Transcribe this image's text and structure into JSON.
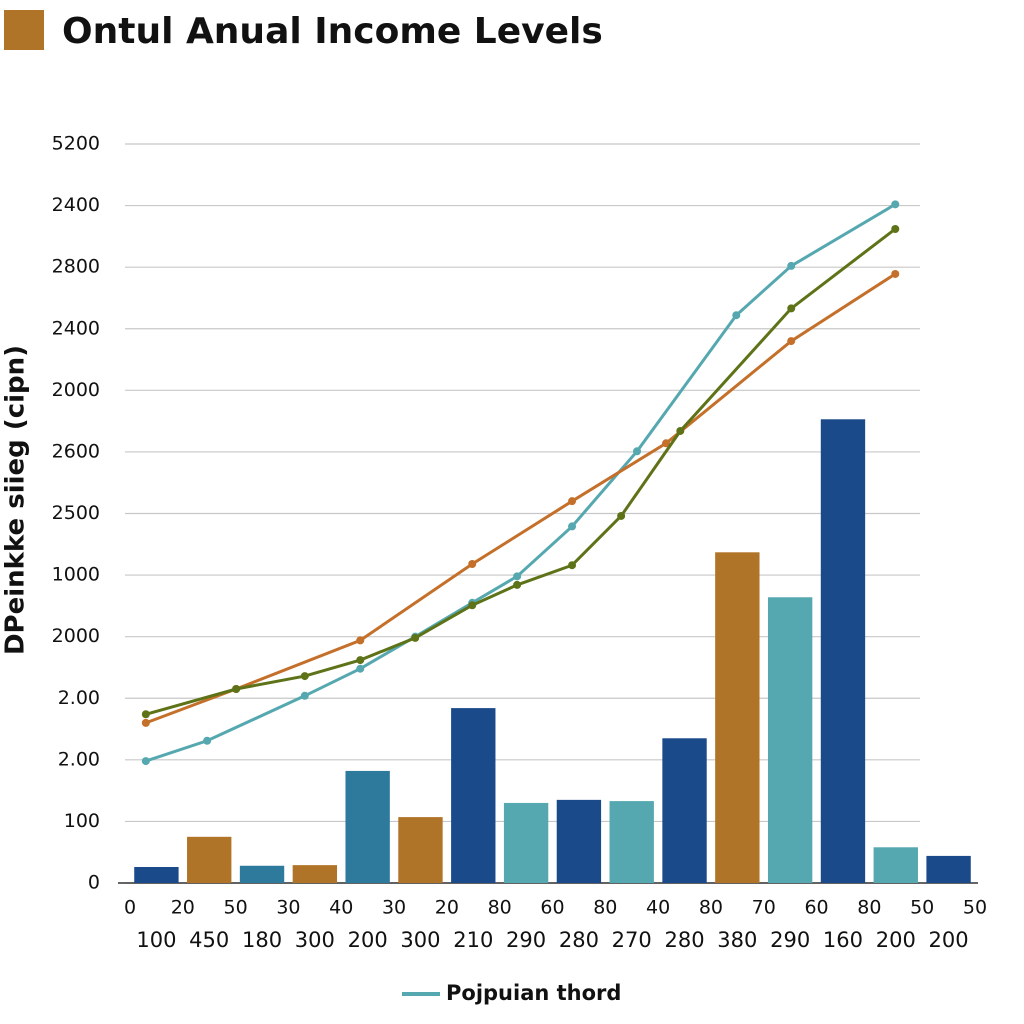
{
  "chart_data": {
    "type": "combo",
    "title": "Ontul Anual Income Levels",
    "title_icon_color": "#b07428",
    "ylabel": "DPeinkke siieg (cipn)",
    "categories": [
      "100",
      "450",
      "180",
      "300",
      "200",
      "300",
      "210",
      "290",
      "280",
      "270",
      "280",
      "380",
      "290",
      "160",
      "200",
      "200"
    ],
    "x_edge_labels": [
      "0",
      "20",
      "50",
      "30",
      "40",
      "30",
      "20",
      "80",
      "60",
      "80",
      "40",
      "80",
      "70",
      "60",
      "80",
      "50",
      "50"
    ],
    "xlim": [
      0,
      16
    ],
    "ylim": [
      0,
      12
    ],
    "yticks": [
      {
        "value": 0,
        "label": "0"
      },
      {
        "value": 1,
        "label": "100"
      },
      {
        "value": 2,
        "label": "2.00"
      },
      {
        "value": 3,
        "label": "2.00"
      },
      {
        "value": 4,
        "label": "2000"
      },
      {
        "value": 5,
        "label": "1000"
      },
      {
        "value": 6,
        "label": "2500"
      },
      {
        "value": 7,
        "label": "2600"
      },
      {
        "value": 8,
        "label": "2000"
      },
      {
        "value": 9,
        "label": "2400"
      },
      {
        "value": 10,
        "label": "2800"
      },
      {
        "value": 11,
        "label": "2400"
      },
      {
        "value": 12,
        "label": "5200"
      }
    ],
    "grid": true,
    "bars": {
      "values": [
        0.26,
        0.75,
        0.28,
        0.29,
        1.82,
        1.07,
        2.84,
        1.3,
        1.35,
        1.33,
        2.35,
        5.37,
        4.64,
        7.53,
        0.58,
        0.44
      ],
      "colors": [
        "#1a4a8a",
        "#b07428",
        "#2e7a9c",
        "#b07428",
        "#2e7a9c",
        "#b07428",
        "#1a4a8a",
        "#55a8b0",
        "#1a4a8a",
        "#55a8b0",
        "#1a4a8a",
        "#b07428",
        "#55a8b0",
        "#1a4a8a",
        "#55a8b0",
        "#1a4a8a"
      ]
    },
    "series": [
      {
        "name": "Pojpuian thord",
        "color": "#55a8b0",
        "x": [
          0.3,
          1.46,
          3.31,
          4.36,
          5.4,
          6.48,
          7.33,
          8.37,
          9.6,
          11.48,
          12.52,
          14.49
        ],
        "values": [
          1.98,
          2.31,
          3.04,
          3.48,
          4.0,
          4.55,
          4.98,
          5.79,
          7.01,
          9.22,
          10.02,
          11.02
        ]
      },
      {
        "color": "#c4702a",
        "x": [
          0.3,
          2.01,
          4.36,
          6.48,
          8.37,
          10.15,
          12.52,
          14.49
        ],
        "values": [
          2.6,
          3.15,
          3.94,
          5.18,
          6.2,
          7.14,
          8.8,
          9.89
        ]
      },
      {
        "color": "#5e7318",
        "x": [
          0.3,
          2.01,
          3.31,
          4.36,
          5.4,
          6.48,
          7.33,
          8.37,
          9.3,
          10.42,
          12.52,
          14.49
        ],
        "values": [
          2.74,
          3.15,
          3.36,
          3.62,
          3.98,
          4.51,
          4.84,
          5.16,
          5.96,
          7.34,
          9.33,
          10.62
        ]
      }
    ],
    "legend": "bottom"
  }
}
